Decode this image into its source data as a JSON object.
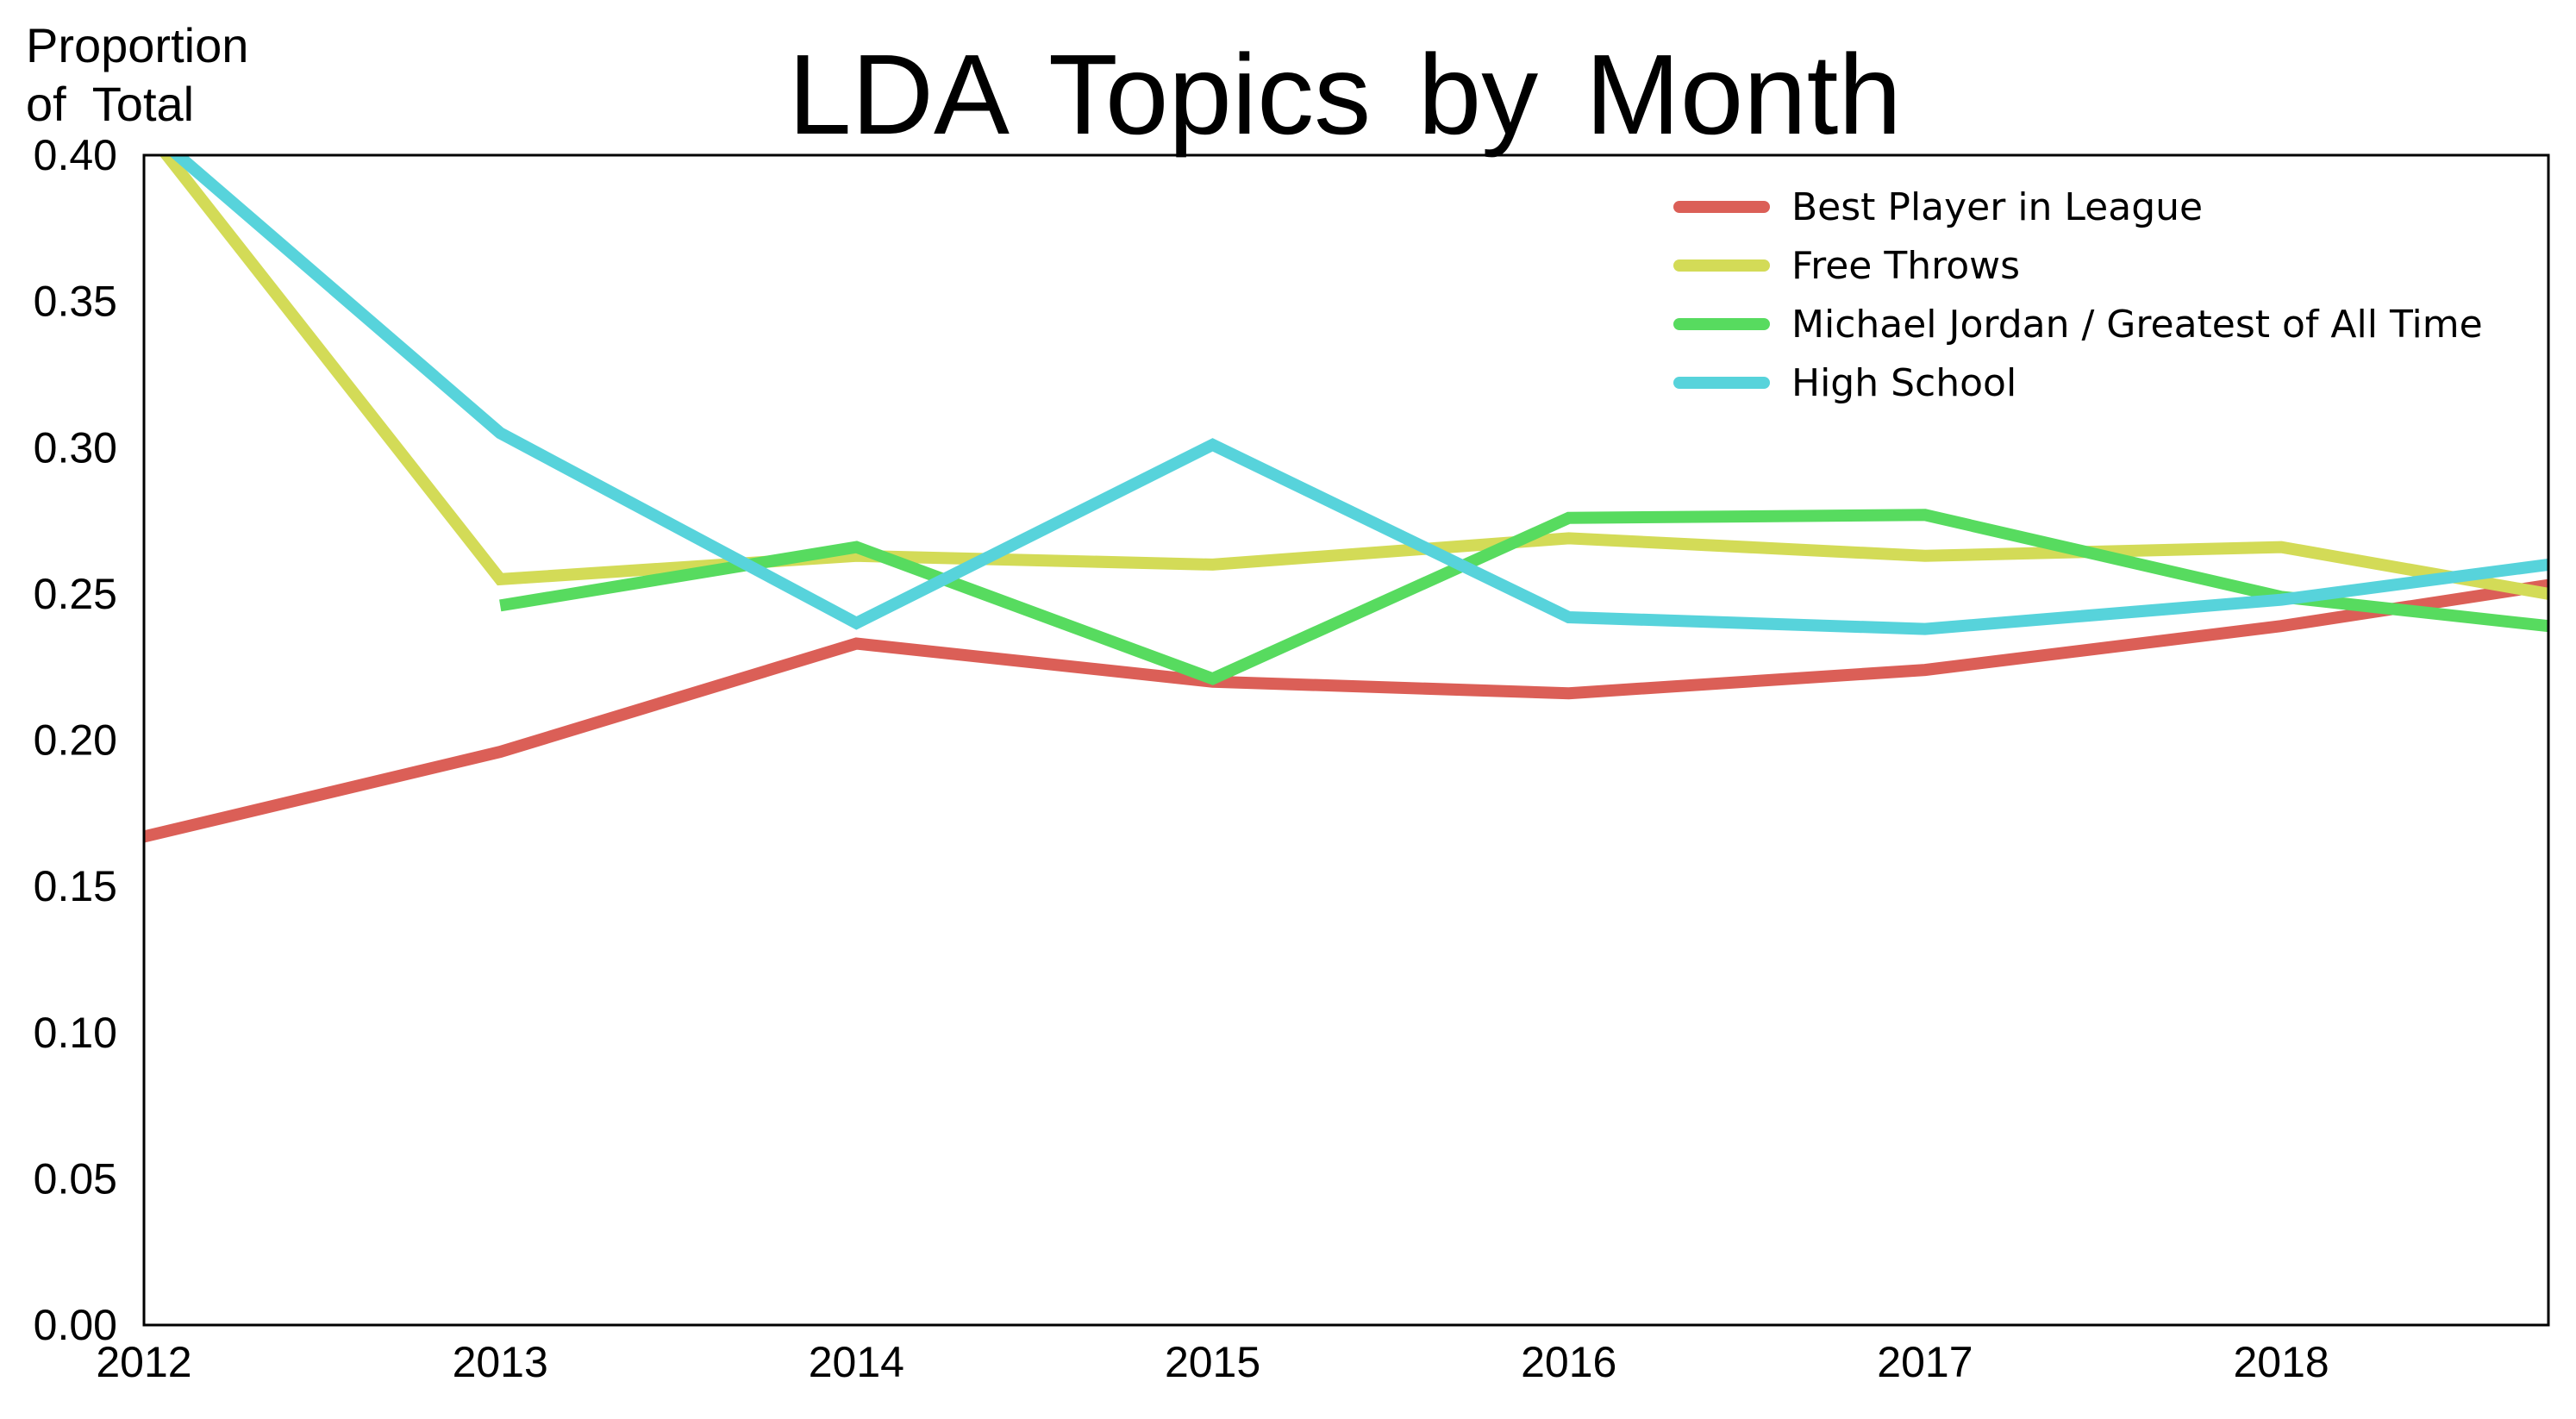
{
  "chart_data": {
    "type": "line",
    "title": "LDA  Topics  by  Month",
    "ylabel_lines": [
      "Proportion",
      "of  Total"
    ],
    "xlabel": "",
    "x_ticks": [
      "2012",
      "2013",
      "2014",
      "2015",
      "2016",
      "2017",
      "2018"
    ],
    "y_ticks": [
      "0.00",
      "0.05",
      "0.10",
      "0.15",
      "0.20",
      "0.25",
      "0.30",
      "0.35",
      "0.40"
    ],
    "xlim": [
      2012,
      2018.75
    ],
    "ylim": [
      0,
      0.4
    ],
    "grid": false,
    "legend_position": "top-right",
    "series": [
      {
        "name": "Best Player in League",
        "color": "#db5f57",
        "points": [
          [
            2012,
            0.167
          ],
          [
            2013,
            0.196
          ],
          [
            2014,
            0.233
          ],
          [
            2015,
            0.22
          ],
          [
            2016,
            0.216
          ],
          [
            2017,
            0.224
          ],
          [
            2018,
            0.239
          ],
          [
            2018.75,
            0.253
          ]
        ]
      },
      {
        "name": "Free Throws",
        "color": "#d3db57",
        "points": [
          [
            2012,
            0.41
          ],
          [
            2013,
            0.255
          ],
          [
            2014,
            0.263
          ],
          [
            2015,
            0.26
          ],
          [
            2016,
            0.269
          ],
          [
            2017,
            0.263
          ],
          [
            2018,
            0.266
          ],
          [
            2018.75,
            0.25
          ]
        ]
      },
      {
        "name": "Michael Jordan / Greatest of All Time",
        "color": "#57db5f",
        "points": [
          [
            2013,
            0.246
          ],
          [
            2014,
            0.266
          ],
          [
            2015,
            0.221
          ],
          [
            2016,
            0.276
          ],
          [
            2017,
            0.277
          ],
          [
            2018,
            0.249
          ],
          [
            2018.75,
            0.239
          ]
        ]
      },
      {
        "name": "High School",
        "color": "#57d3db",
        "points": [
          [
            2012,
            0.41
          ],
          [
            2013,
            0.305
          ],
          [
            2014,
            0.24
          ],
          [
            2015,
            0.301
          ],
          [
            2016,
            0.242
          ],
          [
            2017,
            0.238
          ],
          [
            2018,
            0.248
          ],
          [
            2018.75,
            0.26
          ]
        ]
      }
    ]
  }
}
